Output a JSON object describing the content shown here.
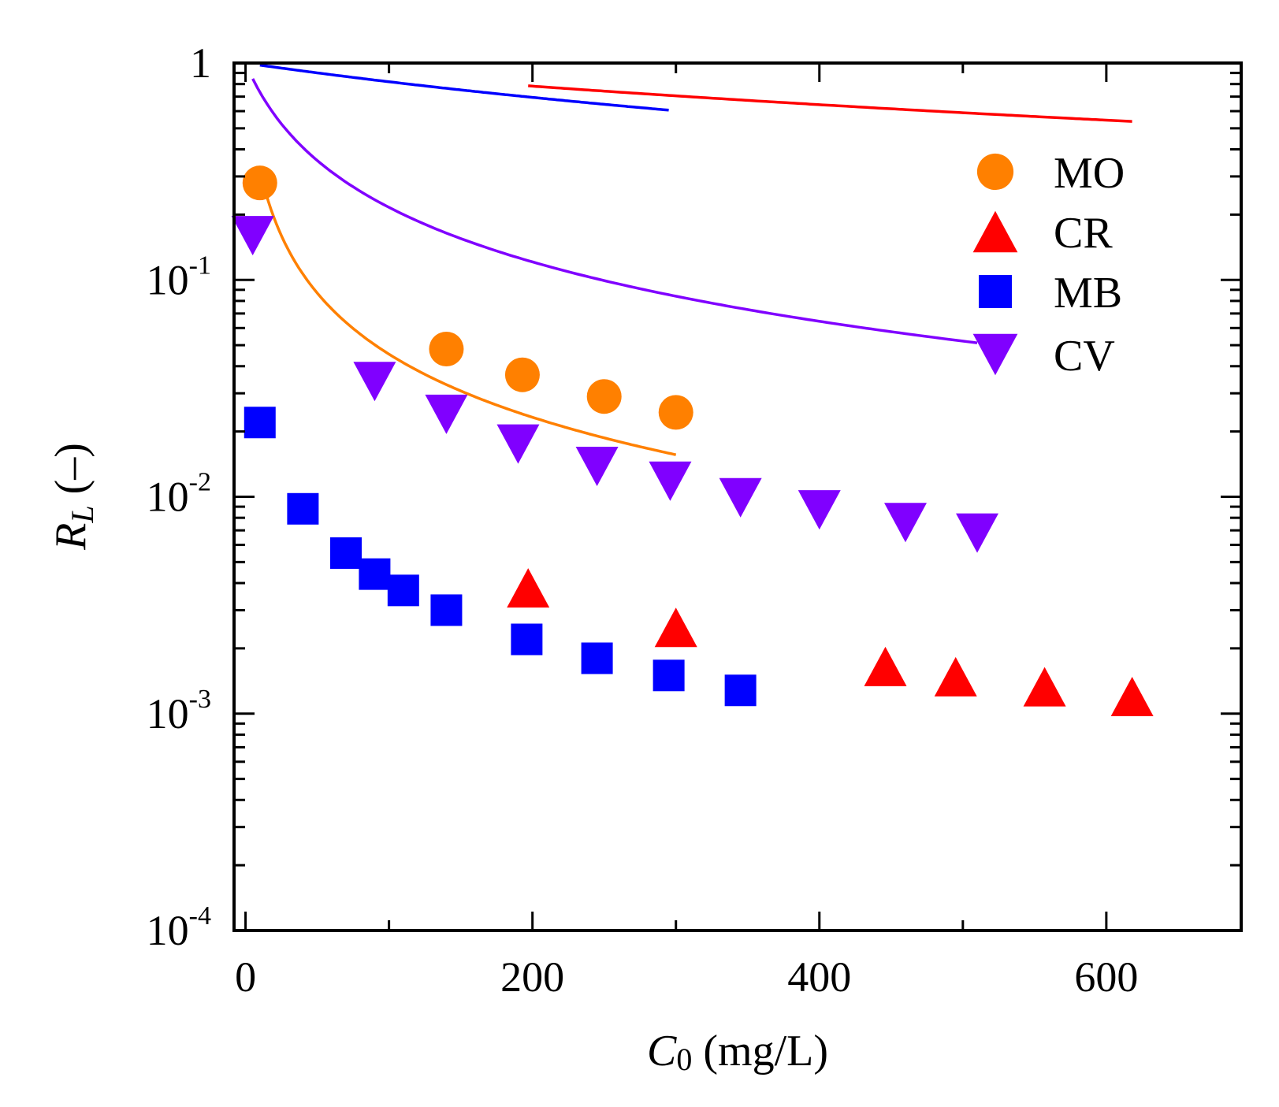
{
  "chart_data": {
    "type": "scatter",
    "title": "",
    "xlabel": {
      "main": "C",
      "sub": "0",
      "unit": " (mg/L)"
    },
    "ylabel": {
      "main": "R",
      "sub": "L",
      "unit": " (–)"
    },
    "xlim": [
      -8,
      694
    ],
    "ylim": [
      0.0001,
      1
    ],
    "yscale": "log",
    "grid": false,
    "legend_position": "top-right",
    "x_ticks": [
      0,
      200,
      400,
      600
    ],
    "x_tick_labels": [
      "0",
      "200",
      "400",
      "600"
    ],
    "y_ticks": [
      {
        "value": 1,
        "base": "1",
        "exp": ""
      },
      {
        "value": 0.1,
        "base": "10",
        "exp": "-1"
      },
      {
        "value": 0.01,
        "base": "10",
        "exp": "-2"
      },
      {
        "value": 0.001,
        "base": "10",
        "exp": "-3"
      },
      {
        "value": 0.0001,
        "base": "10",
        "exp": "-4"
      }
    ],
    "series": [
      {
        "name": "MO",
        "marker": "circle",
        "color": "#ff8000",
        "x": [
          10,
          140,
          193,
          250,
          300
        ],
        "y": [
          0.28,
          0.048,
          0.0365,
          0.029,
          0.0245
        ],
        "fit": {
          "K": 0.21,
          "xmin": 10,
          "xmax": 300
        }
      },
      {
        "name": "CR",
        "marker": "triangle-up",
        "color": "#ff0000",
        "x": [
          197,
          300,
          446,
          495,
          557,
          618
        ],
        "y": [
          0.0038,
          0.0025,
          0.00165,
          0.00148,
          0.00133,
          0.0012
        ],
        "fit": {
          "K": 0.00139,
          "xmin": 197,
          "xmax": 618
        }
      },
      {
        "name": "MB",
        "marker": "square",
        "color": "#0000ff",
        "x": [
          10,
          40,
          70,
          90,
          110,
          140,
          196,
          245,
          295,
          345
        ],
        "y": [
          0.022,
          0.0088,
          0.0055,
          0.0044,
          0.0037,
          0.003,
          0.0022,
          0.0018,
          0.0015,
          0.00128
        ],
        "fit": {
          "K": 0.0022,
          "xmin": 10,
          "xmax": 295
        }
      },
      {
        "name": "CV",
        "marker": "triangle-down",
        "color": "#8000ff",
        "x": [
          5,
          90,
          140,
          190,
          245,
          296,
          345,
          400,
          460,
          510
        ],
        "y": [
          0.16,
          0.034,
          0.024,
          0.0175,
          0.0138,
          0.0118,
          0.0099,
          0.0087,
          0.0076,
          0.0068
        ],
        "fit": {
          "K": 0.0363,
          "xmin": 5,
          "xmax": 510
        }
      }
    ]
  }
}
